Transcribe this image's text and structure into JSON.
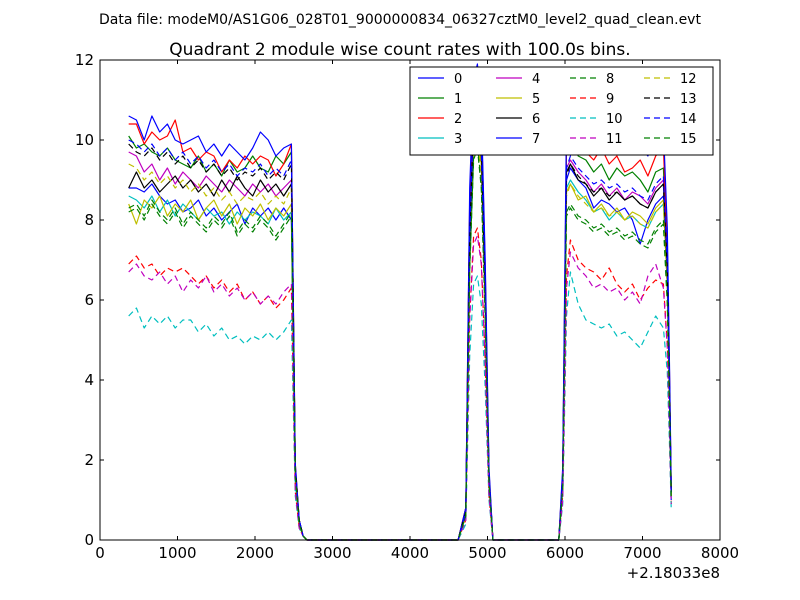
{
  "figure": {
    "suptitle": "Data file: modeM0/AS1G06_028T01_9000000834_06327cztM0_level2_quad_clean.evt",
    "offset_label": "+2.18033e8"
  },
  "chart_data": {
    "type": "line",
    "title": "Quadrant 2 module wise count rates with 100.0s bins.",
    "xlabel": "",
    "ylabel": "",
    "xlim": [
      0,
      8000
    ],
    "ylim": [
      0,
      12
    ],
    "x_offset": 218033000,
    "xticks": [
      0,
      1000,
      2000,
      3000,
      4000,
      5000,
      6000,
      7000,
      8000
    ],
    "yticks": [
      0,
      2,
      4,
      6,
      8,
      10,
      12
    ],
    "grid": false,
    "legend": {
      "placement": "top-right",
      "columns": 4
    },
    "x": [
      370,
      470,
      570,
      670,
      770,
      870,
      970,
      1070,
      1170,
      1270,
      1370,
      1470,
      1570,
      1670,
      1770,
      1870,
      1970,
      2070,
      2170,
      2270,
      2370,
      2470,
      2520,
      2570,
      2620,
      2670,
      2720,
      2820,
      4620,
      4720,
      4770,
      4820,
      4870,
      4920,
      4970,
      5020,
      5070,
      5920,
      5970,
      6020,
      6070,
      6170,
      6270,
      6370,
      6470,
      6570,
      6670,
      6770,
      6870,
      6970,
      7070,
      7170,
      7270,
      7320,
      7350,
      7370
    ],
    "series": [
      {
        "name": "0",
        "color": "#0000ff",
        "dash": false,
        "values": [
          8.8,
          8.8,
          8.7,
          8.9,
          8.6,
          8.4,
          8.5,
          8.2,
          8.3,
          8.5,
          8.1,
          8.3,
          8.0,
          8.2,
          8.4,
          7.9,
          8.3,
          8.1,
          8.3,
          8.0,
          8.3,
          8.0,
          1.5,
          0.4,
          0.1,
          0.0,
          0.0,
          0.0,
          0.0,
          0.7,
          7.5,
          11.6,
          11.8,
          9.5,
          6.0,
          1.5,
          0.0,
          0.0,
          1.5,
          9.0,
          9.3,
          9.0,
          8.8,
          8.3,
          8.5,
          8.4,
          8.2,
          8.3,
          8.0,
          7.4,
          8.0,
          8.4,
          8.6,
          6.5,
          3.5,
          1.0
        ]
      },
      {
        "name": "1",
        "color": "#008000",
        "dash": false,
        "values": [
          10.1,
          9.8,
          9.9,
          9.7,
          9.6,
          9.8,
          9.5,
          9.4,
          9.3,
          9.6,
          9.2,
          9.4,
          9.1,
          9.5,
          9.2,
          9.3,
          9.6,
          9.3,
          9.2,
          9.6,
          9.4,
          9.7,
          1.8,
          0.5,
          0.1,
          0.0,
          0.0,
          0.0,
          0.0,
          0.8,
          8.2,
          11.0,
          11.3,
          10.2,
          6.5,
          1.6,
          0.0,
          0.0,
          1.6,
          9.8,
          10.1,
          9.6,
          9.5,
          9.2,
          9.4,
          9.0,
          9.3,
          9.1,
          9.2,
          9.0,
          8.7,
          9.2,
          9.3,
          7.0,
          3.8,
          1.2
        ]
      },
      {
        "name": "2",
        "color": "#ff0000",
        "dash": false,
        "values": [
          10.4,
          10.4,
          9.9,
          10.2,
          10.0,
          10.1,
          10.5,
          9.7,
          9.8,
          9.5,
          9.7,
          9.6,
          9.2,
          9.5,
          9.3,
          9.6,
          9.4,
          9.6,
          9.5,
          9.1,
          9.4,
          9.9,
          1.9,
          0.5,
          0.1,
          0.0,
          0.0,
          0.0,
          0.0,
          0.8,
          8.5,
          11.2,
          11.5,
          10.6,
          6.8,
          1.7,
          0.0,
          0.0,
          1.7,
          10.0,
          10.3,
          9.9,
          9.7,
          9.5,
          9.8,
          9.4,
          9.6,
          9.2,
          9.3,
          9.5,
          9.1,
          9.6,
          9.8,
          7.4,
          4.0,
          1.3
        ]
      },
      {
        "name": "3",
        "color": "#00bfbf",
        "dash": false,
        "values": [
          8.6,
          8.5,
          8.3,
          8.6,
          8.2,
          8.5,
          8.1,
          8.4,
          8.2,
          8.0,
          8.3,
          8.1,
          8.2,
          7.9,
          8.2,
          8.0,
          8.2,
          8.1,
          7.9,
          8.3,
          8.0,
          8.2,
          1.5,
          0.4,
          0.1,
          0.0,
          0.0,
          0.0,
          0.0,
          0.7,
          7.2,
          10.4,
          10.7,
          9.6,
          6.0,
          1.5,
          0.0,
          0.0,
          1.4,
          8.8,
          9.0,
          8.7,
          8.5,
          8.2,
          8.3,
          8.0,
          8.2,
          8.0,
          8.1,
          7.9,
          7.8,
          8.2,
          8.4,
          6.4,
          3.5,
          1.1
        ]
      },
      {
        "name": "4",
        "color": "#bf00bf",
        "dash": false,
        "values": [
          9.7,
          9.6,
          9.2,
          9.4,
          9.0,
          9.3,
          8.9,
          9.2,
          9.0,
          8.8,
          9.1,
          8.9,
          8.7,
          9.0,
          8.8,
          8.6,
          8.9,
          8.7,
          8.9,
          8.6,
          8.8,
          9.0,
          1.7,
          0.4,
          0.1,
          0.0,
          0.0,
          0.0,
          0.0,
          0.7,
          7.8,
          10.8,
          11.1,
          10.0,
          6.3,
          1.6,
          0.0,
          0.0,
          1.5,
          9.3,
          9.5,
          9.2,
          9.0,
          8.7,
          8.9,
          8.6,
          8.8,
          8.5,
          8.7,
          8.6,
          8.4,
          8.8,
          9.0,
          6.8,
          3.7,
          1.2
        ]
      },
      {
        "name": "5",
        "color": "#bfbf00",
        "dash": false,
        "values": [
          8.4,
          7.9,
          8.5,
          8.3,
          8.6,
          8.1,
          8.4,
          8.2,
          8.5,
          8.0,
          8.3,
          8.5,
          8.1,
          8.4,
          7.9,
          8.3,
          8.1,
          8.4,
          8.0,
          8.3,
          8.1,
          8.4,
          1.6,
          0.4,
          0.1,
          0.0,
          0.0,
          0.0,
          0.0,
          0.7,
          7.4,
          10.2,
          10.5,
          9.4,
          5.9,
          1.5,
          0.0,
          0.0,
          1.4,
          8.7,
          8.9,
          8.5,
          8.6,
          8.2,
          8.4,
          8.1,
          8.3,
          8.0,
          8.2,
          8.1,
          7.9,
          8.3,
          8.5,
          6.4,
          3.5,
          1.1
        ]
      },
      {
        "name": "6",
        "color": "#000000",
        "dash": false,
        "values": [
          8.8,
          9.2,
          8.8,
          9.0,
          8.7,
          8.9,
          9.1,
          8.8,
          9.0,
          8.7,
          8.9,
          8.6,
          9.0,
          8.7,
          9.1,
          8.8,
          8.6,
          9.0,
          8.7,
          8.9,
          8.6,
          8.9,
          1.7,
          0.4,
          0.1,
          0.0,
          0.0,
          0.0,
          0.0,
          0.7,
          7.7,
          10.6,
          10.9,
          9.8,
          6.2,
          1.6,
          0.0,
          0.0,
          1.5,
          9.2,
          9.4,
          9.0,
          8.9,
          8.6,
          8.8,
          8.5,
          8.7,
          8.5,
          8.6,
          8.4,
          8.3,
          8.7,
          8.9,
          6.7,
          3.6,
          1.2
        ]
      },
      {
        "name": "7",
        "color": "#0000ff",
        "dash": false,
        "values": [
          10.6,
          10.5,
          10.0,
          10.6,
          10.2,
          10.4,
          10.0,
          9.9,
          10.0,
          10.1,
          9.7,
          9.9,
          9.6,
          9.9,
          9.7,
          9.5,
          9.8,
          10.2,
          10.0,
          9.6,
          9.8,
          9.9,
          1.9,
          0.5,
          0.1,
          0.0,
          0.0,
          0.0,
          0.0,
          0.8,
          8.8,
          11.5,
          11.9,
          10.8,
          7.0,
          1.8,
          0.0,
          0.0,
          1.8,
          10.5,
          11.0,
          10.6,
          10.4,
          10.2,
          10.3,
          10.0,
          10.1,
          9.9,
          10.0,
          9.8,
          9.6,
          10.1,
          10.3,
          7.8,
          4.2,
          1.4
        ]
      },
      {
        "name": "8",
        "color": "#008000",
        "dash": true,
        "values": [
          8.3,
          8.4,
          8.1,
          8.5,
          8.2,
          8.0,
          8.3,
          7.9,
          8.2,
          8.0,
          7.8,
          8.1,
          7.9,
          8.2,
          7.7,
          8.0,
          7.8,
          8.1,
          7.9,
          7.6,
          7.9,
          8.2,
          1.6,
          0.4,
          0.1,
          0.0,
          0.0,
          0.0,
          0.0,
          0.6,
          6.8,
          9.6,
          9.9,
          8.9,
          5.6,
          1.4,
          0.0,
          0.0,
          1.3,
          8.2,
          8.4,
          8.1,
          8.0,
          7.8,
          7.9,
          7.7,
          7.8,
          7.6,
          7.7,
          7.5,
          7.4,
          7.8,
          8.0,
          6.0,
          3.3,
          1.1
        ]
      },
      {
        "name": "9",
        "color": "#ff0000",
        "dash": true,
        "values": [
          6.9,
          7.1,
          6.8,
          6.9,
          6.6,
          6.8,
          6.7,
          6.8,
          6.6,
          6.4,
          6.6,
          6.3,
          6.5,
          6.2,
          6.4,
          6.0,
          6.2,
          5.9,
          6.1,
          5.8,
          6.0,
          6.3,
          1.2,
          0.3,
          0.1,
          0.0,
          0.0,
          0.0,
          0.0,
          0.5,
          5.6,
          7.6,
          7.8,
          7.0,
          4.5,
          1.1,
          0.0,
          0.0,
          1.1,
          6.6,
          7.5,
          7.0,
          6.8,
          6.7,
          6.5,
          6.8,
          6.4,
          6.2,
          6.4,
          6.0,
          6.3,
          6.5,
          6.4,
          4.9,
          2.6,
          0.9
        ]
      },
      {
        "name": "10",
        "color": "#00bfbf",
        "dash": true,
        "values": [
          5.6,
          5.8,
          5.3,
          5.6,
          5.4,
          5.6,
          5.3,
          5.5,
          5.5,
          5.2,
          5.4,
          5.1,
          5.3,
          5.0,
          5.1,
          4.9,
          5.1,
          5.0,
          5.2,
          5.0,
          5.2,
          5.5,
          1.1,
          0.3,
          0.1,
          0.0,
          0.0,
          0.0,
          0.0,
          0.4,
          4.6,
          6.4,
          6.6,
          5.9,
          3.8,
          1.0,
          0.0,
          0.0,
          0.9,
          5.6,
          6.7,
          5.9,
          5.5,
          5.4,
          5.3,
          5.4,
          5.1,
          5.2,
          5.0,
          4.8,
          5.2,
          5.6,
          5.3,
          4.2,
          2.3,
          0.8
        ]
      },
      {
        "name": "11",
        "color": "#bf00bf",
        "dash": true,
        "values": [
          6.7,
          6.9,
          6.6,
          6.5,
          6.7,
          6.4,
          6.6,
          6.2,
          6.5,
          6.3,
          6.6,
          6.2,
          6.4,
          6.1,
          6.3,
          6.0,
          6.2,
          5.9,
          6.1,
          5.9,
          6.2,
          6.4,
          1.2,
          0.3,
          0.1,
          0.0,
          0.0,
          0.0,
          0.0,
          0.5,
          5.5,
          7.4,
          7.6,
          6.9,
          4.4,
          1.1,
          0.0,
          0.0,
          1.0,
          6.3,
          7.2,
          6.8,
          6.6,
          6.3,
          6.4,
          6.2,
          6.3,
          6.0,
          6.2,
          5.9,
          6.6,
          6.9,
          6.3,
          4.8,
          2.6,
          0.9
        ]
      },
      {
        "name": "12",
        "color": "#bfbf00",
        "dash": true,
        "values": [
          9.4,
          9.3,
          9.0,
          9.2,
          8.9,
          9.1,
          8.8,
          9.0,
          8.7,
          8.9,
          8.6,
          8.8,
          8.5,
          8.7,
          8.4,
          8.6,
          8.5,
          8.7,
          8.4,
          8.6,
          8.4,
          8.8,
          1.7,
          0.4,
          0.1,
          0.0,
          0.0,
          0.0,
          0.0,
          0.6,
          7.0,
          9.9,
          10.2,
          9.1,
          5.8,
          1.5,
          0.0,
          0.0,
          1.4,
          8.6,
          8.9,
          8.6,
          8.4,
          8.2,
          8.3,
          8.1,
          8.2,
          8.0,
          8.1,
          7.9,
          7.8,
          8.2,
          8.4,
          6.3,
          3.4,
          1.1
        ]
      },
      {
        "name": "13",
        "color": "#000000",
        "dash": true,
        "values": [
          9.9,
          9.7,
          9.6,
          9.8,
          9.5,
          9.7,
          9.4,
          9.6,
          9.3,
          9.5,
          9.2,
          9.4,
          9.1,
          9.3,
          9.0,
          9.2,
          9.1,
          9.3,
          9.0,
          9.2,
          9.0,
          9.4,
          1.8,
          0.5,
          0.1,
          0.0,
          0.0,
          0.0,
          0.0,
          0.7,
          7.4,
          10.4,
          10.7,
          9.6,
          6.1,
          1.6,
          0.0,
          0.0,
          1.5,
          9.1,
          9.4,
          9.1,
          8.9,
          8.7,
          8.8,
          8.6,
          8.7,
          8.5,
          8.6,
          8.4,
          8.3,
          8.7,
          8.9,
          6.7,
          3.6,
          1.2
        ]
      },
      {
        "name": "14",
        "color": "#0000ff",
        "dash": true,
        "values": [
          10.0,
          9.9,
          9.7,
          9.9,
          9.6,
          9.8,
          9.5,
          9.7,
          9.4,
          9.6,
          9.3,
          9.5,
          9.2,
          9.4,
          9.1,
          9.3,
          9.2,
          9.4,
          9.1,
          9.3,
          9.1,
          9.5,
          1.8,
          0.5,
          0.1,
          0.0,
          0.0,
          0.0,
          0.0,
          0.7,
          7.6,
          10.6,
          10.9,
          9.8,
          6.2,
          1.6,
          0.0,
          0.0,
          1.5,
          9.3,
          9.6,
          9.3,
          9.1,
          8.9,
          9.0,
          8.8,
          8.9,
          8.7,
          8.8,
          8.6,
          8.5,
          8.9,
          9.1,
          6.9,
          3.7,
          1.2
        ]
      },
      {
        "name": "15",
        "color": "#008000",
        "dash": true,
        "values": [
          8.2,
          8.3,
          8.0,
          8.4,
          8.1,
          7.9,
          8.2,
          7.8,
          8.1,
          7.9,
          7.7,
          8.0,
          7.8,
          8.1,
          7.6,
          7.9,
          7.7,
          8.0,
          7.8,
          7.5,
          7.8,
          8.1,
          1.6,
          0.4,
          0.1,
          0.0,
          0.0,
          0.0,
          0.0,
          0.6,
          6.7,
          9.5,
          9.8,
          8.8,
          5.5,
          1.4,
          0.0,
          0.0,
          1.3,
          8.1,
          8.3,
          8.0,
          7.9,
          7.7,
          7.8,
          7.6,
          7.7,
          7.5,
          7.6,
          7.4,
          7.3,
          7.7,
          7.9,
          5.9,
          3.2,
          1.0
        ]
      }
    ]
  }
}
